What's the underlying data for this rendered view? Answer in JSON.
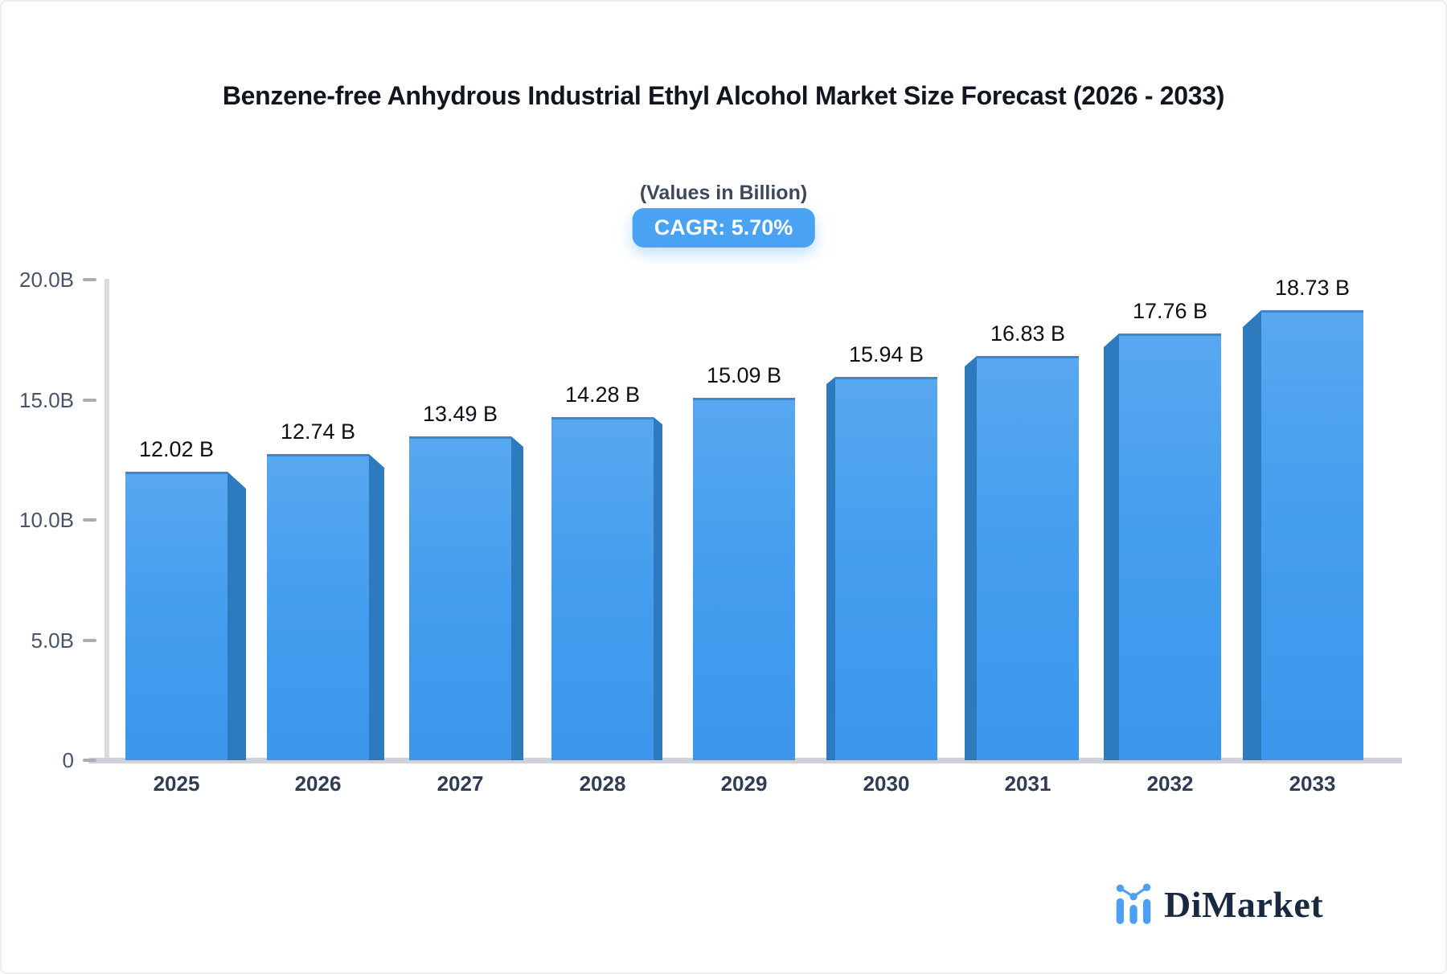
{
  "chart_data": {
    "type": "bar",
    "title": "Benzene-free Anhydrous Industrial Ethyl Alcohol Market Size Forecast (2026 - 2033)",
    "subtitle": "(Values in Billion)",
    "badge": "CAGR: 5.70%",
    "categories": [
      "2025",
      "2026",
      "2027",
      "2028",
      "2029",
      "2030",
      "2031",
      "2032",
      "2033"
    ],
    "values": [
      12.02,
      12.74,
      13.49,
      14.28,
      15.09,
      15.94,
      16.83,
      17.76,
      18.73
    ],
    "value_labels": [
      "12.02 B",
      "12.74 B",
      "13.49 B",
      "14.28 B",
      "15.09 B",
      "15.94 B",
      "16.83 B",
      "17.76 B",
      "18.73 B"
    ],
    "xlabel": "",
    "ylabel": "",
    "ylim": [
      0,
      20
    ],
    "y_ticks": [
      {
        "label": "20.0B",
        "value": 20
      },
      {
        "label": "15.0B",
        "value": 15
      },
      {
        "label": "10.0B",
        "value": 10
      },
      {
        "label": "5.0B",
        "value": 5
      },
      {
        "label": "0",
        "value": 0
      }
    ],
    "grid": false,
    "legend": "none",
    "style": "3d-center-perspective",
    "colors": {
      "bar_front_top": "#58a8f0",
      "bar_front_bottom": "#3b96ec",
      "bar_side": "#2e7abf",
      "bar_top_edge": "#4285c9",
      "badge_bg": "#4aa2f3",
      "badge_text": "#ffffff",
      "axis_line": "#d9dbe0",
      "baseline": "#ced2d8",
      "tick": "#a8adb6",
      "y_label": "#49536a",
      "x_label": "#303c53",
      "value_label": "#0c1016",
      "title": "#10151f",
      "subtitle": "#3d4859"
    }
  },
  "logo": {
    "text": "DiMarket",
    "icon": "bar-line-chart-icon",
    "icon_color": "#4d9ff5",
    "text_color": "#1a2940"
  }
}
